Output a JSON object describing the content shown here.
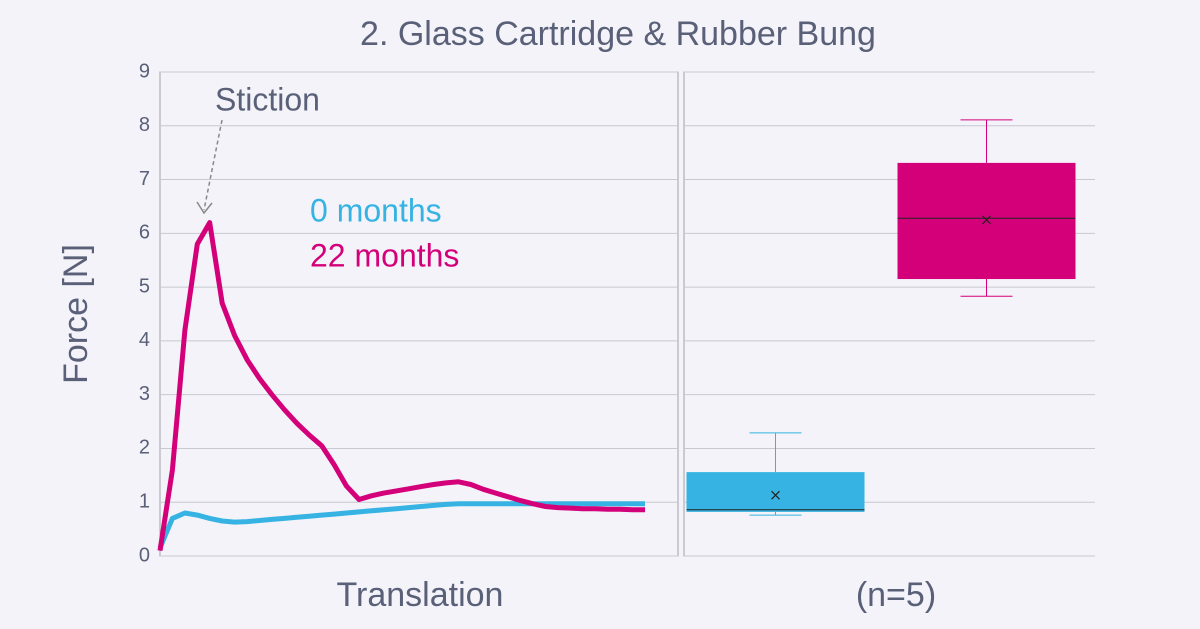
{
  "chart_data": [
    {
      "type": "line",
      "title": "2. Glass Cartridge & Rubber Bung",
      "xlabel": "Translation",
      "ylabel": "Force [N]",
      "annotation": "Stiction",
      "ylim": [
        0,
        9
      ],
      "yticks": [
        0,
        1,
        2,
        3,
        4,
        5,
        6,
        7,
        8,
        9
      ],
      "grid": true,
      "series": [
        {
          "name": "0 months",
          "color": "#36b3e3",
          "values": [
            0.15,
            0.7,
            0.8,
            0.76,
            0.7,
            0.65,
            0.63,
            0.64,
            0.66,
            0.68,
            0.7,
            0.72,
            0.74,
            0.76,
            0.78,
            0.8,
            0.82,
            0.84,
            0.86,
            0.88,
            0.9,
            0.92,
            0.94,
            0.96,
            0.97,
            0.97,
            0.97,
            0.97,
            0.97,
            0.97,
            0.97,
            0.97,
            0.97,
            0.97,
            0.97,
            0.97,
            0.97,
            0.97,
            0.97,
            0.97
          ]
        },
        {
          "name": "22 months",
          "color": "#d4007a",
          "values": [
            0.1,
            1.6,
            4.2,
            5.8,
            6.2,
            4.7,
            4.1,
            3.65,
            3.3,
            3.0,
            2.72,
            2.47,
            2.25,
            2.05,
            1.7,
            1.3,
            1.05,
            1.12,
            1.17,
            1.21,
            1.25,
            1.29,
            1.33,
            1.36,
            1.38,
            1.33,
            1.24,
            1.17,
            1.1,
            1.03,
            0.97,
            0.92,
            0.9,
            0.89,
            0.88,
            0.88,
            0.87,
            0.87,
            0.86,
            0.86
          ]
        }
      ]
    },
    {
      "type": "box",
      "xlabel": "(n=5)",
      "ylim": [
        0,
        9
      ],
      "yticks": [
        0,
        1,
        2,
        3,
        4,
        5,
        6,
        7,
        8,
        9
      ],
      "grid": true,
      "series": [
        {
          "color": "#36b3e3",
          "min": 0.76,
          "q1": 0.82,
          "median": 0.86,
          "q3": 1.56,
          "max": 2.29,
          "mean": 1.13
        },
        {
          "color": "#d4007a",
          "min": 4.83,
          "q1": 5.15,
          "median": 6.28,
          "q3": 7.31,
          "max": 8.11,
          "mean": 6.25
        }
      ]
    }
  ]
}
